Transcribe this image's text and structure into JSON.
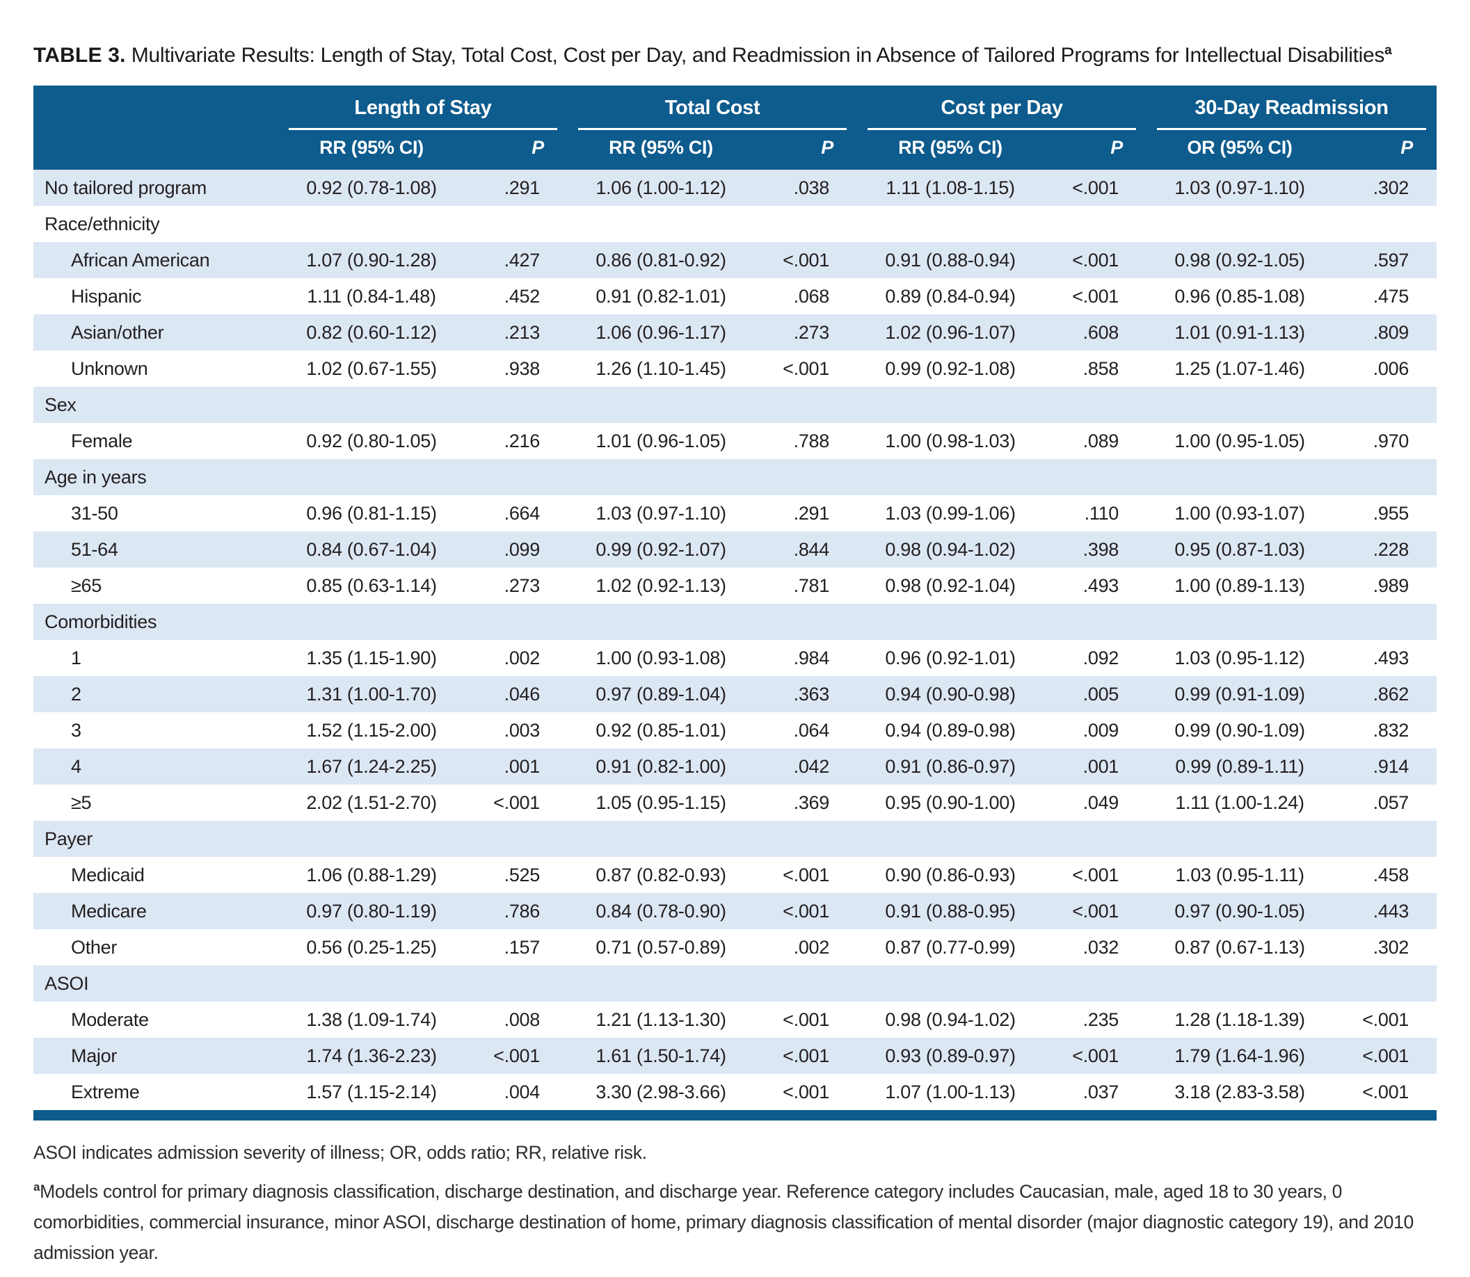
{
  "table": {
    "title_label": "TABLE 3.",
    "title_text": " Multivariate Results: Length of Stay, Total Cost, Cost per Day, and Readmission in Absence of Tailored Programs for Intellectual Disabilities",
    "title_superscript": "a",
    "column_groups": [
      {
        "label": "Length of Stay",
        "estimate_header": "RR (95% CI)",
        "p_header": "P"
      },
      {
        "label": "Total Cost",
        "estimate_header": "RR (95% CI)",
        "p_header": "P"
      },
      {
        "label": "Cost per Day",
        "estimate_header": "RR (95% CI)",
        "p_header": "P"
      },
      {
        "label": "30-Day Readmission",
        "estimate_header": "OR (95% CI)",
        "p_header": "P"
      }
    ],
    "rows": [
      {
        "type": "data",
        "indent": false,
        "label": "No tailored program",
        "values": [
          "0.92 (0.78-1.08)",
          ".291",
          "1.06 (1.00-1.12)",
          ".038",
          "1.11 (1.08-1.15)",
          "<.001",
          "1.03 (0.97-1.10)",
          ".302"
        ]
      },
      {
        "type": "section",
        "label": "Race/ethnicity"
      },
      {
        "type": "data",
        "indent": true,
        "label": "African American",
        "values": [
          "1.07 (0.90-1.28)",
          ".427",
          "0.86 (0.81-0.92)",
          "<.001",
          "0.91 (0.88-0.94)",
          "<.001",
          "0.98 (0.92-1.05)",
          ".597"
        ]
      },
      {
        "type": "data",
        "indent": true,
        "label": "Hispanic",
        "values": [
          "1.11 (0.84-1.48)",
          ".452",
          "0.91 (0.82-1.01)",
          ".068",
          "0.89 (0.84-0.94)",
          "<.001",
          "0.96 (0.85-1.08)",
          ".475"
        ]
      },
      {
        "type": "data",
        "indent": true,
        "label": "Asian/other",
        "values": [
          "0.82 (0.60-1.12)",
          ".213",
          "1.06 (0.96-1.17)",
          ".273",
          "1.02 (0.96-1.07)",
          ".608",
          "1.01 (0.91-1.13)",
          ".809"
        ]
      },
      {
        "type": "data",
        "indent": true,
        "label": "Unknown",
        "values": [
          "1.02 (0.67-1.55)",
          ".938",
          "1.26 (1.10-1.45)",
          "<.001",
          "0.99 (0.92-1.08)",
          ".858",
          "1.25 (1.07-1.46)",
          ".006"
        ]
      },
      {
        "type": "section",
        "label": "Sex"
      },
      {
        "type": "data",
        "indent": true,
        "label": "Female",
        "values": [
          "0.92 (0.80-1.05)",
          ".216",
          "1.01 (0.96-1.05)",
          ".788",
          "1.00 (0.98-1.03)",
          ".089",
          "1.00 (0.95-1.05)",
          ".970"
        ]
      },
      {
        "type": "section",
        "label": "Age in years"
      },
      {
        "type": "data",
        "indent": true,
        "label": "31-50",
        "values": [
          "0.96 (0.81-1.15)",
          ".664",
          "1.03 (0.97-1.10)",
          ".291",
          "1.03 (0.99-1.06)",
          ".110",
          "1.00 (0.93-1.07)",
          ".955"
        ]
      },
      {
        "type": "data",
        "indent": true,
        "label": "51-64",
        "values": [
          "0.84 (0.67-1.04)",
          ".099",
          "0.99 (0.92-1.07)",
          ".844",
          "0.98 (0.94-1.02)",
          ".398",
          "0.95 (0.87-1.03)",
          ".228"
        ]
      },
      {
        "type": "data",
        "indent": true,
        "label": "≥65",
        "values": [
          "0.85 (0.63-1.14)",
          ".273",
          "1.02 (0.92-1.13)",
          ".781",
          "0.98 (0.92-1.04)",
          ".493",
          "1.00 (0.89-1.13)",
          ".989"
        ]
      },
      {
        "type": "section",
        "label": "Comorbidities"
      },
      {
        "type": "data",
        "indent": true,
        "label": "1",
        "values": [
          "1.35 (1.15-1.90)",
          ".002",
          "1.00 (0.93-1.08)",
          ".984",
          "0.96 (0.92-1.01)",
          ".092",
          "1.03 (0.95-1.12)",
          ".493"
        ]
      },
      {
        "type": "data",
        "indent": true,
        "label": "2",
        "values": [
          "1.31 (1.00-1.70)",
          ".046",
          "0.97 (0.89-1.04)",
          ".363",
          "0.94 (0.90-0.98)",
          ".005",
          "0.99 (0.91-1.09)",
          ".862"
        ]
      },
      {
        "type": "data",
        "indent": true,
        "label": "3",
        "values": [
          "1.52 (1.15-2.00)",
          ".003",
          "0.92 (0.85-1.01)",
          ".064",
          "0.94 (0.89-0.98)",
          ".009",
          "0.99 (0.90-1.09)",
          ".832"
        ]
      },
      {
        "type": "data",
        "indent": true,
        "label": "4",
        "values": [
          "1.67 (1.24-2.25)",
          ".001",
          "0.91 (0.82-1.00)",
          ".042",
          "0.91 (0.86-0.97)",
          ".001",
          "0.99 (0.89-1.11)",
          ".914"
        ]
      },
      {
        "type": "data",
        "indent": true,
        "label": "≥5",
        "values": [
          "2.02 (1.51-2.70)",
          "<.001",
          "1.05 (0.95-1.15)",
          ".369",
          "0.95 (0.90-1.00)",
          ".049",
          "1.11 (1.00-1.24)",
          ".057"
        ]
      },
      {
        "type": "section",
        "label": "Payer"
      },
      {
        "type": "data",
        "indent": true,
        "label": "Medicaid",
        "values": [
          "1.06 (0.88-1.29)",
          ".525",
          "0.87 (0.82-0.93)",
          "<.001",
          "0.90 (0.86-0.93)",
          "<.001",
          "1.03 (0.95-1.11)",
          ".458"
        ]
      },
      {
        "type": "data",
        "indent": true,
        "label": "Medicare",
        "values": [
          "0.97 (0.80-1.19)",
          ".786",
          "0.84 (0.78-0.90)",
          "<.001",
          "0.91 (0.88-0.95)",
          "<.001",
          "0.97 (0.90-1.05)",
          ".443"
        ]
      },
      {
        "type": "data",
        "indent": true,
        "label": "Other",
        "values": [
          "0.56 (0.25-1.25)",
          ".157",
          "0.71 (0.57-0.89)",
          ".002",
          "0.87 (0.77-0.99)",
          ".032",
          "0.87 (0.67-1.13)",
          ".302"
        ]
      },
      {
        "type": "section",
        "label": "ASOI"
      },
      {
        "type": "data",
        "indent": true,
        "label": "Moderate",
        "values": [
          "1.38 (1.09-1.74)",
          ".008",
          "1.21 (1.13-1.30)",
          "<.001",
          "0.98 (0.94-1.02)",
          ".235",
          "1.28 (1.18-1.39)",
          "<.001"
        ]
      },
      {
        "type": "data",
        "indent": true,
        "label": "Major",
        "values": [
          "1.74 (1.36-2.23)",
          "<.001",
          "1.61 (1.50-1.74)",
          "<.001",
          "0.93 (0.89-0.97)",
          "<.001",
          "1.79 (1.64-1.96)",
          "<.001"
        ]
      },
      {
        "type": "data",
        "indent": true,
        "label": "Extreme",
        "values": [
          "1.57 (1.15-2.14)",
          ".004",
          "3.30 (2.98-3.66)",
          "<.001",
          "1.07 (1.00-1.13)",
          ".037",
          "3.18 (2.83-3.58)",
          "<.001"
        ]
      }
    ]
  },
  "footnotes": {
    "abbreviations": "ASOI indicates admission severity of illness; OR, odds ratio; RR, relative risk.",
    "note_a_marker": "a",
    "note_a_text": "Models control for primary diagnosis classification, discharge destination, and discharge year. Reference category includes Caucasian, male, aged 18 to 30 years, 0 comorbidities, commercial insurance, minor ASOI, discharge destination of home, primary diagnosis classification of mental disorder (major diagnostic category 19), and 2010 admission year."
  },
  "colors": {
    "header_bg": "#0e5b8d",
    "stripe_bg": "#dce7f4",
    "rule": "#ffffff",
    "text": "#231f20"
  }
}
